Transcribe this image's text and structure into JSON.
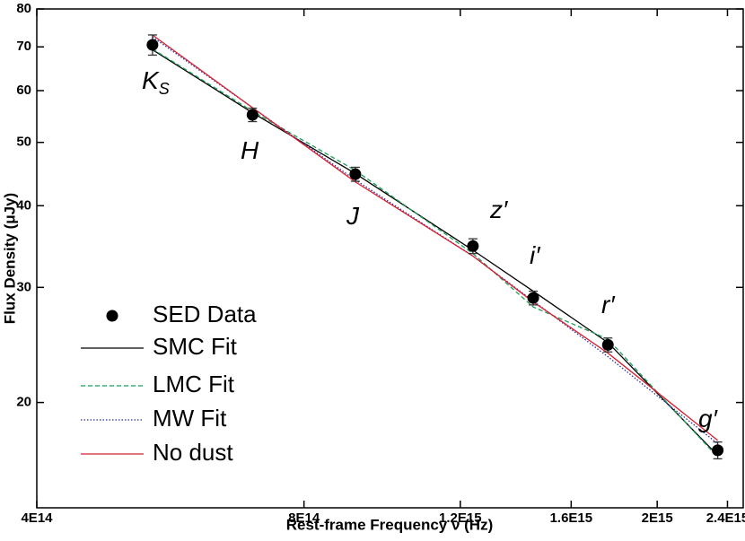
{
  "chart_data": {
    "type": "scatter",
    "x_label": "Rest-frame Frequency ν (Hz)",
    "y_label": "Flux Density (μJy)",
    "xscale": "log",
    "yscale": "log",
    "xlim": [
      400000000000000,
      2500000000000000
    ],
    "ylim": [
      13.8,
      80
    ],
    "xticks": [
      {
        "value": 400000000000000,
        "label": "4E14"
      },
      {
        "value": 800000000000000,
        "label": "8E14"
      },
      {
        "value": 1200000000000000,
        "label": "1.2E15"
      },
      {
        "value": 1600000000000000,
        "label": "1.6E15"
      },
      {
        "value": 2000000000000000,
        "label": "2E15"
      },
      {
        "value": 2400000000000000,
        "label": "2.4E15"
      }
    ],
    "yticks": [
      20,
      30,
      40,
      50,
      60,
      70,
      80
    ],
    "legend": "left",
    "band_labels": [
      {
        "text": "K",
        "sub": "S"
      },
      {
        "text": "H"
      },
      {
        "text": "J"
      },
      {
        "text": "z′"
      },
      {
        "text": "i′"
      },
      {
        "text": "r′"
      },
      {
        "text": "g′"
      }
    ],
    "series": [
      {
        "name": "SED Data",
        "type": "scatter",
        "color": "#000000",
        "x": [
          540000000000000,
          700000000000000,
          914000000000000,
          1240000000000000,
          1450000000000000,
          1760000000000000,
          2340000000000000
        ],
        "values": [
          70.5,
          55.1,
          44.7,
          34.7,
          28.9,
          24.5,
          16.9
        ],
        "errors": [
          2.5,
          1.3,
          1.1,
          0.9,
          0.7,
          0.6,
          0.5
        ]
      },
      {
        "name": "SMC Fit",
        "type": "line",
        "color": "#000000",
        "dash": "none",
        "x": [
          540000000000000,
          700000000000000,
          914000000000000,
          1240000000000000,
          1450000000000000,
          1760000000000000,
          2340000000000000
        ],
        "values": [
          69.3,
          55.5,
          44.8,
          34.2,
          29.6,
          24.7,
          16.6
        ]
      },
      {
        "name": "LMC Fit",
        "type": "line",
        "color": "#1e9e5a",
        "dash": "5,3",
        "x": [
          540000000000000,
          700000000000000,
          914000000000000,
          1240000000000000,
          1450000000000000,
          1760000000000000,
          2340000000000000
        ],
        "values": [
          69.5,
          55.8,
          45.3,
          33.8,
          28.0,
          25.0,
          16.5
        ]
      },
      {
        "name": "MW Fit",
        "type": "line",
        "color": "#2b2b9e",
        "dash": "1.5,2",
        "x": [
          540000000000000,
          700000000000000,
          914000000000000,
          1240000000000000,
          1450000000000000,
          1760000000000000,
          2340000000000000
        ],
        "values": [
          72.5,
          56.5,
          43.8,
          33.5,
          28.6,
          23.5,
          17.3
        ]
      },
      {
        "name": "No dust",
        "type": "line",
        "color": "#d62030",
        "dash": "none",
        "x": [
          540000000000000,
          700000000000000,
          914000000000000,
          1240000000000000,
          1450000000000000,
          1760000000000000,
          2340000000000000
        ],
        "values": [
          73.0,
          56.5,
          43.5,
          33.5,
          28.5,
          23.8,
          17.5
        ]
      }
    ]
  }
}
